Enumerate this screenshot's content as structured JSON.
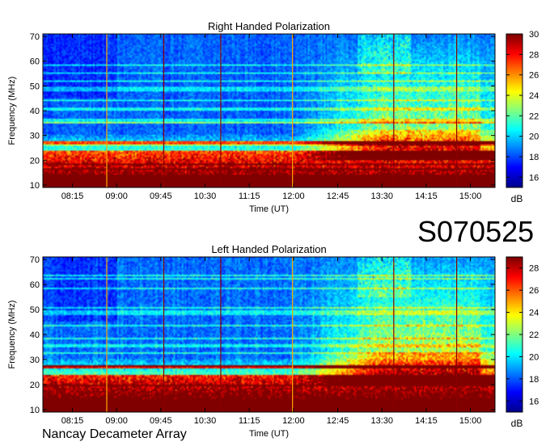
{
  "observation_id": "S070525",
  "observatory": "Nancay Decameter Array",
  "chart_data": [
    {
      "type": "heatmap",
      "title": "Right Handed Polarization",
      "xlabel": "Time (UT)",
      "ylabel": "Frequency (MHz)",
      "x_ticks": [
        "08:15",
        "09:00",
        "09:45",
        "10:30",
        "11:15",
        "12:00",
        "12:45",
        "13:30",
        "14:15",
        "15:00"
      ],
      "x_range": [
        "07:45",
        "15:25"
      ],
      "y_ticks": [
        10,
        20,
        30,
        40,
        50,
        60,
        70
      ],
      "ylim": [
        9,
        71
      ],
      "colorbar": {
        "label": "dB",
        "ticks": [
          16,
          18,
          20,
          22,
          24,
          26,
          28,
          30
        ],
        "range": [
          15,
          30
        ]
      },
      "colormap": [
        "#00008f",
        "#0000ff",
        "#0080ff",
        "#00ffff",
        "#80ff80",
        "#ffff00",
        "#ff8000",
        "#ff0000",
        "#800000"
      ],
      "vertical_lines_time": [
        "08:50",
        "09:48",
        "10:46",
        "11:59",
        "13:42",
        "14:46"
      ],
      "features": {
        "low_band_intense": {
          "freq_range": [
            9,
            24
          ],
          "db": 29
        },
        "band_line_mhz": 27,
        "burst_region": {
          "time_range": [
            "12:00",
            "15:10"
          ],
          "freq_range": [
            20,
            70
          ]
        }
      }
    },
    {
      "type": "heatmap",
      "title": "Left Handed Polarization",
      "xlabel": "Time (UT)",
      "ylabel": "Frequency (MHz)",
      "x_ticks": [
        "08:15",
        "09:00",
        "09:45",
        "10:30",
        "11:15",
        "12:00",
        "12:45",
        "13:30",
        "14:15",
        "15:00"
      ],
      "x_range": [
        "07:45",
        "15:25"
      ],
      "y_ticks": [
        10,
        20,
        30,
        40,
        50,
        60,
        70
      ],
      "ylim": [
        9,
        71
      ],
      "colorbar": {
        "label": "dB",
        "ticks": [
          16,
          18,
          20,
          22,
          24,
          26,
          28
        ],
        "range": [
          15,
          29
        ]
      },
      "colormap": [
        "#00008f",
        "#0000ff",
        "#0080ff",
        "#00ffff",
        "#80ff80",
        "#ffff00",
        "#ff8000",
        "#ff0000",
        "#800000"
      ],
      "vertical_lines_time": [
        "08:50",
        "09:48",
        "10:46",
        "11:59",
        "13:42",
        "14:46"
      ],
      "features": {
        "low_band_intense": {
          "freq_range": [
            9,
            24
          ],
          "db": 28
        },
        "band_line_mhz": 27,
        "burst_region": {
          "time_range": [
            "12:00",
            "15:10"
          ],
          "freq_range": [
            20,
            70
          ]
        }
      }
    }
  ]
}
